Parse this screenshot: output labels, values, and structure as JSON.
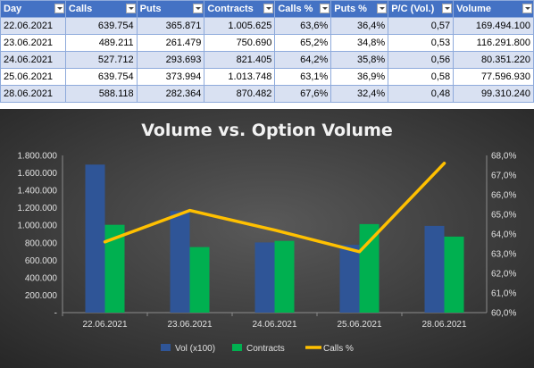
{
  "table": {
    "headers": [
      "Day",
      "Calls",
      "Puts",
      "Contracts",
      "Calls %",
      "Puts %",
      "P/C (Vol.)",
      "Volume"
    ],
    "rows": [
      [
        "22.06.2021",
        "639.754",
        "365.871",
        "1.005.625",
        "63,6%",
        "36,4%",
        "0,57",
        "169.494.100"
      ],
      [
        "23.06.2021",
        "489.211",
        "261.479",
        "750.690",
        "65,2%",
        "34,8%",
        "0,53",
        "116.291.800"
      ],
      [
        "24.06.2021",
        "527.712",
        "293.693",
        "821.405",
        "64,2%",
        "35,8%",
        "0,56",
        "80.351.220"
      ],
      [
        "25.06.2021",
        "639.754",
        "373.994",
        "1.013.748",
        "63,1%",
        "36,9%",
        "0,58",
        "77.596.930"
      ],
      [
        "28.06.2021",
        "588.118",
        "282.364",
        "870.482",
        "67,6%",
        "32,4%",
        "0,48",
        "99.310.240"
      ]
    ]
  },
  "chart_data": {
    "type": "bar",
    "title": "Volume vs. Option Volume",
    "categories": [
      "22.06.2021",
      "23.06.2021",
      "24.06.2021",
      "25.06.2021",
      "28.06.2021"
    ],
    "series": [
      {
        "name": "Vol (x100)",
        "kind": "bar",
        "axis": "left",
        "color": "#2f5597",
        "values": [
          1694941,
          1162918,
          803512,
          775969,
          993102
        ]
      },
      {
        "name": "Contracts",
        "kind": "bar",
        "axis": "left",
        "color": "#00b050",
        "values": [
          1005625,
          750690,
          821405,
          1013748,
          870482
        ]
      },
      {
        "name": "Calls %",
        "kind": "line",
        "axis": "right",
        "color": "#ffc000",
        "values": [
          63.6,
          65.2,
          64.2,
          63.1,
          67.6
        ]
      }
    ],
    "y_left": {
      "min": 0,
      "max": 1800000,
      "ticks": [
        "-",
        "200.000",
        "400.000",
        "600.000",
        "800.000",
        "1.000.000",
        "1.200.000",
        "1.400.000",
        "1.600.000",
        "1.800.000"
      ]
    },
    "y_right": {
      "min": 60,
      "max": 68,
      "ticks": [
        "60,0%",
        "61,0%",
        "62,0%",
        "63,0%",
        "64,0%",
        "65,0%",
        "66,0%",
        "67,0%",
        "68,0%"
      ]
    },
    "grid": false,
    "legend_position": "bottom",
    "background": "#404040"
  }
}
